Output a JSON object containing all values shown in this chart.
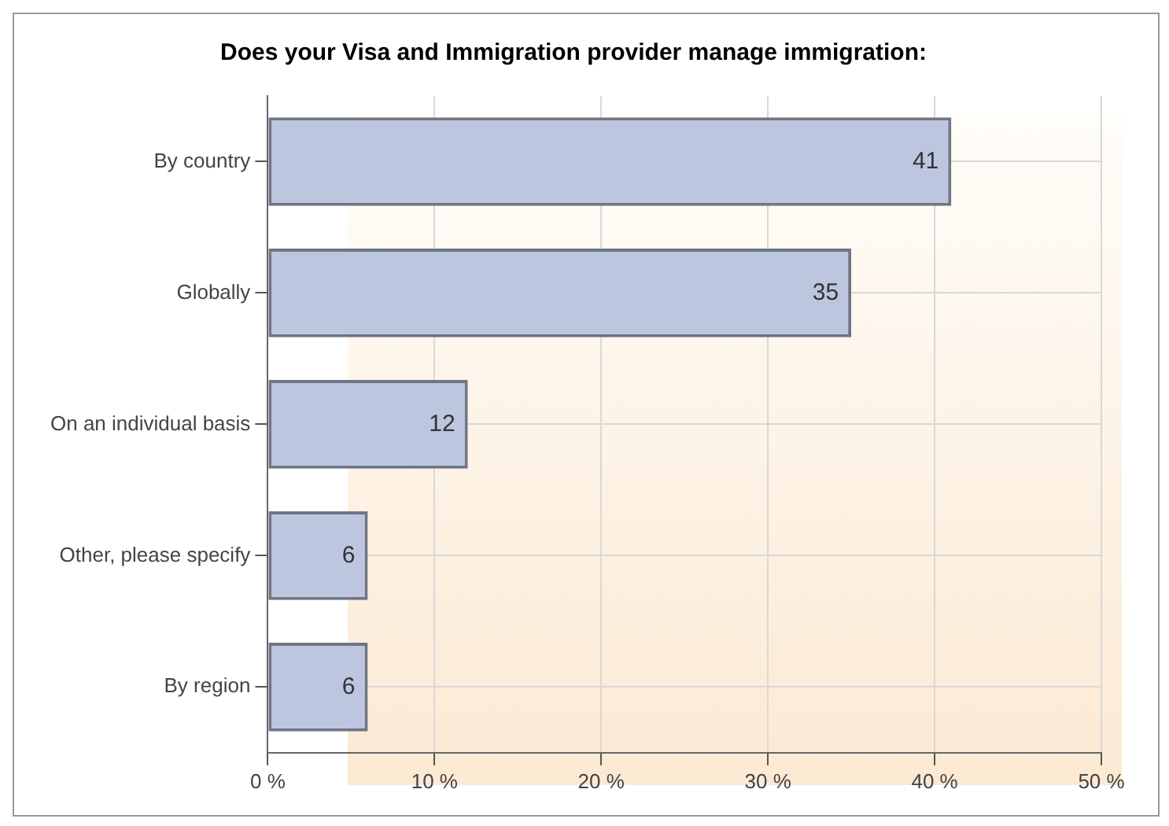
{
  "chart_data": {
    "type": "bar",
    "orientation": "horizontal",
    "title": "Does your Visa and Immigration provider manage immigration:",
    "categories": [
      "By country",
      "Globally",
      "On an individual basis",
      "Other, please specify",
      "By region"
    ],
    "values": [
      41,
      35,
      12,
      6,
      6
    ],
    "color": "#bcc6df",
    "xlim": [
      0,
      50
    ],
    "xticks": [
      {
        "value": 0,
        "label": "0 %"
      },
      {
        "value": 10,
        "label": "10 %"
      },
      {
        "value": 20,
        "label": "20 %"
      },
      {
        "value": 30,
        "label": "30 %"
      },
      {
        "value": 40,
        "label": "40 %"
      },
      {
        "value": 50,
        "label": "50 %"
      }
    ],
    "grid": true,
    "data_labels": true,
    "legend": false
  }
}
